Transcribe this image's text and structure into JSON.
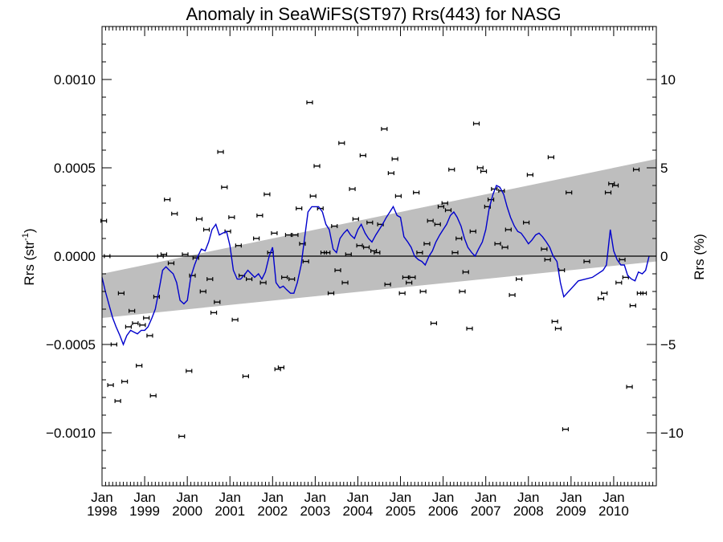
{
  "chart_data": {
    "type": "scatter",
    "title": "Anomaly in SeaWiFS(ST97) Rrs(443) for NASG",
    "ylabel_left": "Rrs (str",
    "ylabel_left_sup": "-1",
    "ylabel_left_close": ")",
    "ylabel_right": "Rrs (%)",
    "x_unit": "year",
    "xlim": [
      1998.0,
      2011.0
    ],
    "ylim": [
      -0.0013,
      0.0013
    ],
    "ylim_right": [
      -13,
      13
    ],
    "grid": false,
    "legend": "none",
    "colors": {
      "line": "#0000cc",
      "band": "#bebebe",
      "points": "#000000",
      "zero": "#000000"
    },
    "x_ticks": [
      {
        "x": 1998,
        "month": "Jan",
        "year": "1998"
      },
      {
        "x": 1999,
        "month": "Jan",
        "year": "1999"
      },
      {
        "x": 2000,
        "month": "Jan",
        "year": "2000"
      },
      {
        "x": 2001,
        "month": "Jan",
        "year": "2001"
      },
      {
        "x": 2002,
        "month": "Jan",
        "year": "2002"
      },
      {
        "x": 2003,
        "month": "Jan",
        "year": "2003"
      },
      {
        "x": 2004,
        "month": "Jan",
        "year": "2004"
      },
      {
        "x": 2005,
        "month": "Jan",
        "year": "2005"
      },
      {
        "x": 2006,
        "month": "Jan",
        "year": "2006"
      },
      {
        "x": 2007,
        "month": "Jan",
        "year": "2007"
      },
      {
        "x": 2008,
        "month": "Jan",
        "year": "2008"
      },
      {
        "x": 2009,
        "month": "Jan",
        "year": "2009"
      },
      {
        "x": 2010,
        "month": "Jan",
        "year": "2010"
      }
    ],
    "y_ticks_left": [
      {
        "v": 0.001,
        "label": "0.0010"
      },
      {
        "v": 0.0005,
        "label": "0.0005"
      },
      {
        "v": 0.0,
        "label": "0.0000"
      },
      {
        "v": -0.0005,
        "label": "−0.0005"
      },
      {
        "v": -0.001,
        "label": "−0.0010"
      }
    ],
    "y_ticks_right": [
      {
        "v": 10,
        "label": "10"
      },
      {
        "v": 5,
        "label": "5"
      },
      {
        "v": 0,
        "label": "0"
      },
      {
        "v": -5,
        "label": "−5"
      },
      {
        "v": -10,
        "label": "−10"
      }
    ],
    "band": {
      "x": [
        1998.0,
        2011.0
      ],
      "upper": [
        -0.0001,
        0.00055
      ],
      "lower": [
        -0.00035,
        -3e-05
      ]
    },
    "zero_line": 0.0,
    "points": [
      {
        "x": 1998.04,
        "y": 0.0002
      },
      {
        "x": 1998.12,
        "y": 0.0
      },
      {
        "x": 1998.2,
        "y": -0.00073
      },
      {
        "x": 1998.28,
        "y": -0.0005
      },
      {
        "x": 1998.37,
        "y": -0.00082
      },
      {
        "x": 1998.45,
        "y": -0.00021
      },
      {
        "x": 1998.53,
        "y": -0.00071
      },
      {
        "x": 1998.62,
        "y": -0.0004
      },
      {
        "x": 1998.7,
        "y": -0.00031
      },
      {
        "x": 1998.78,
        "y": -0.00038
      },
      {
        "x": 1998.87,
        "y": -0.00062
      },
      {
        "x": 1998.95,
        "y": -0.00039
      },
      {
        "x": 1999.04,
        "y": -0.00035
      },
      {
        "x": 1999.12,
        "y": -0.00045
      },
      {
        "x": 1999.2,
        "y": -0.00079
      },
      {
        "x": 1999.28,
        "y": -0.00023
      },
      {
        "x": 1999.37,
        "y": 0.0
      },
      {
        "x": 1999.45,
        "y": 1e-05
      },
      {
        "x": 1999.53,
        "y": 0.00032
      },
      {
        "x": 1999.62,
        "y": -4e-05
      },
      {
        "x": 1999.7,
        "y": 0.00024
      },
      {
        "x": 1999.87,
        "y": -0.00102
      },
      {
        "x": 1999.95,
        "y": 1e-05
      },
      {
        "x": 2000.04,
        "y": -0.00065
      },
      {
        "x": 2000.12,
        "y": -0.00011
      },
      {
        "x": 2000.2,
        "y": -1e-05
      },
      {
        "x": 2000.28,
        "y": 0.00021
      },
      {
        "x": 2000.37,
        "y": -0.0002
      },
      {
        "x": 2000.45,
        "y": 0.00015
      },
      {
        "x": 2000.53,
        "y": -0.00013
      },
      {
        "x": 2000.62,
        "y": -0.00032
      },
      {
        "x": 2000.7,
        "y": -0.00026
      },
      {
        "x": 2000.78,
        "y": 0.00059
      },
      {
        "x": 2000.87,
        "y": 0.00039
      },
      {
        "x": 2000.95,
        "y": 0.00014
      },
      {
        "x": 2001.04,
        "y": 0.00022
      },
      {
        "x": 2001.12,
        "y": -0.00036
      },
      {
        "x": 2001.2,
        "y": 6e-05
      },
      {
        "x": 2001.28,
        "y": -0.00011
      },
      {
        "x": 2001.37,
        "y": -0.00068
      },
      {
        "x": 2001.45,
        "y": -0.00013
      },
      {
        "x": 2001.62,
        "y": 0.0001
      },
      {
        "x": 2001.7,
        "y": 0.00023
      },
      {
        "x": 2001.78,
        "y": -0.00015
      },
      {
        "x": 2001.87,
        "y": 0.00035
      },
      {
        "x": 2001.95,
        "y": 2e-05
      },
      {
        "x": 2002.04,
        "y": 0.00013
      },
      {
        "x": 2002.12,
        "y": -0.00064
      },
      {
        "x": 2002.2,
        "y": -0.00063
      },
      {
        "x": 2002.28,
        "y": -0.00012
      },
      {
        "x": 2002.37,
        "y": 0.00012
      },
      {
        "x": 2002.45,
        "y": -0.00013
      },
      {
        "x": 2002.53,
        "y": 0.00012
      },
      {
        "x": 2002.62,
        "y": 0.00027
      },
      {
        "x": 2002.7,
        "y": 7e-05
      },
      {
        "x": 2002.78,
        "y": -3e-05
      },
      {
        "x": 2002.87,
        "y": 0.00087
      },
      {
        "x": 2002.95,
        "y": 0.00034
      },
      {
        "x": 2003.04,
        "y": 0.00051
      },
      {
        "x": 2003.12,
        "y": 0.00027
      },
      {
        "x": 2003.2,
        "y": 2e-05
      },
      {
        "x": 2003.28,
        "y": 2e-05
      },
      {
        "x": 2003.37,
        "y": -0.00021
      },
      {
        "x": 2003.45,
        "y": 0.00017
      },
      {
        "x": 2003.53,
        "y": -8e-05
      },
      {
        "x": 2003.62,
        "y": 0.00064
      },
      {
        "x": 2003.7,
        "y": -0.00015
      },
      {
        "x": 2003.78,
        "y": 1e-05
      },
      {
        "x": 2003.87,
        "y": 0.00038
      },
      {
        "x": 2003.95,
        "y": 0.00021
      },
      {
        "x": 2004.04,
        "y": 6e-05
      },
      {
        "x": 2004.12,
        "y": 0.00057
      },
      {
        "x": 2004.2,
        "y": 5e-05
      },
      {
        "x": 2004.28,
        "y": 0.00019
      },
      {
        "x": 2004.37,
        "y": 3e-05
      },
      {
        "x": 2004.45,
        "y": 2e-05
      },
      {
        "x": 2004.53,
        "y": 0.00018
      },
      {
        "x": 2004.62,
        "y": 0.00072
      },
      {
        "x": 2004.7,
        "y": -0.00016
      },
      {
        "x": 2004.78,
        "y": 0.00047
      },
      {
        "x": 2004.87,
        "y": 0.00055
      },
      {
        "x": 2004.95,
        "y": 0.00034
      },
      {
        "x": 2005.04,
        "y": -0.00021
      },
      {
        "x": 2005.12,
        "y": -0.00012
      },
      {
        "x": 2005.2,
        "y": -0.00015
      },
      {
        "x": 2005.28,
        "y": -0.00012
      },
      {
        "x": 2005.37,
        "y": 0.00036
      },
      {
        "x": 2005.45,
        "y": 2e-05
      },
      {
        "x": 2005.53,
        "y": -0.0002
      },
      {
        "x": 2005.62,
        "y": 7e-05
      },
      {
        "x": 2005.7,
        "y": 0.0002
      },
      {
        "x": 2005.78,
        "y": -0.00038
      },
      {
        "x": 2005.87,
        "y": 0.00018
      },
      {
        "x": 2005.95,
        "y": 0.00028
      },
      {
        "x": 2006.04,
        "y": 0.0003
      },
      {
        "x": 2006.12,
        "y": 0.00026
      },
      {
        "x": 2006.2,
        "y": 0.00049
      },
      {
        "x": 2006.28,
        "y": 2e-05
      },
      {
        "x": 2006.37,
        "y": 0.0001
      },
      {
        "x": 2006.45,
        "y": -0.0002
      },
      {
        "x": 2006.53,
        "y": -9e-05
      },
      {
        "x": 2006.62,
        "y": -0.00041
      },
      {
        "x": 2006.7,
        "y": 0.00014
      },
      {
        "x": 2006.78,
        "y": 0.00075
      },
      {
        "x": 2006.87,
        "y": 0.0005
      },
      {
        "x": 2006.95,
        "y": 0.00048
      },
      {
        "x": 2007.04,
        "y": 0.00028
      },
      {
        "x": 2007.12,
        "y": 0.00032
      },
      {
        "x": 2007.2,
        "y": 0.00038
      },
      {
        "x": 2007.28,
        "y": 7e-05
      },
      {
        "x": 2007.37,
        "y": 0.00037
      },
      {
        "x": 2007.45,
        "y": 5e-05
      },
      {
        "x": 2007.53,
        "y": 0.00015
      },
      {
        "x": 2007.62,
        "y": -0.00022
      },
      {
        "x": 2007.78,
        "y": -0.00013
      },
      {
        "x": 2007.95,
        "y": 0.00019
      },
      {
        "x": 2008.04,
        "y": 0.00046
      },
      {
        "x": 2008.37,
        "y": 4e-05
      },
      {
        "x": 2008.45,
        "y": -2e-05
      },
      {
        "x": 2008.53,
        "y": 0.00056
      },
      {
        "x": 2008.62,
        "y": -0.00037
      },
      {
        "x": 2008.7,
        "y": -0.00041
      },
      {
        "x": 2008.78,
        "y": -8e-05
      },
      {
        "x": 2008.87,
        "y": -0.00098
      },
      {
        "x": 2008.95,
        "y": 0.00036
      },
      {
        "x": 2009.37,
        "y": -3e-05
      },
      {
        "x": 2009.7,
        "y": -0.00024
      },
      {
        "x": 2009.78,
        "y": -0.00021
      },
      {
        "x": 2009.87,
        "y": 0.00036
      },
      {
        "x": 2009.95,
        "y": 0.00041
      },
      {
        "x": 2010.04,
        "y": 0.0004
      },
      {
        "x": 2010.12,
        "y": -0.00015
      },
      {
        "x": 2010.2,
        "y": -2e-05
      },
      {
        "x": 2010.28,
        "y": -0.00012
      },
      {
        "x": 2010.37,
        "y": -0.00074
      },
      {
        "x": 2010.45,
        "y": -0.00028
      },
      {
        "x": 2010.53,
        "y": 0.00049
      },
      {
        "x": 2010.62,
        "y": -0.00021
      },
      {
        "x": 2010.7,
        "y": -0.00021
      }
    ],
    "running_mean": {
      "x": [
        1998.0,
        1998.08,
        1998.17,
        1998.25,
        1998.33,
        1998.42,
        1998.5,
        1998.58,
        1998.67,
        1998.75,
        1998.83,
        1998.92,
        1999.0,
        1999.08,
        1999.17,
        1999.25,
        1999.33,
        1999.42,
        1999.5,
        1999.58,
        1999.67,
        1999.75,
        1999.83,
        1999.92,
        2000.0,
        2000.08,
        2000.17,
        2000.25,
        2000.33,
        2000.42,
        2000.5,
        2000.58,
        2000.67,
        2000.75,
        2000.83,
        2000.92,
        2001.0,
        2001.08,
        2001.17,
        2001.25,
        2001.33,
        2001.42,
        2001.5,
        2001.58,
        2001.67,
        2001.75,
        2001.83,
        2001.92,
        2002.0,
        2002.08,
        2002.17,
        2002.25,
        2002.33,
        2002.42,
        2002.5,
        2002.58,
        2002.67,
        2002.75,
        2002.83,
        2002.92,
        2003.0,
        2003.08,
        2003.17,
        2003.25,
        2003.33,
        2003.42,
        2003.5,
        2003.58,
        2003.67,
        2003.75,
        2003.83,
        2003.92,
        2004.0,
        2004.08,
        2004.17,
        2004.25,
        2004.33,
        2004.42,
        2004.5,
        2004.58,
        2004.67,
        2004.75,
        2004.83,
        2004.92,
        2005.0,
        2005.08,
        2005.17,
        2005.25,
        2005.33,
        2005.42,
        2005.5,
        2005.58,
        2005.67,
        2005.75,
        2005.83,
        2005.92,
        2006.0,
        2006.08,
        2006.17,
        2006.25,
        2006.33,
        2006.42,
        2006.5,
        2006.58,
        2006.67,
        2006.75,
        2006.83,
        2006.92,
        2007.0,
        2007.08,
        2007.17,
        2007.25,
        2007.33,
        2007.42,
        2007.5,
        2007.58,
        2007.67,
        2007.75,
        2007.83,
        2007.92,
        2008.0,
        2008.08,
        2008.17,
        2008.25,
        2008.33,
        2008.42,
        2008.5,
        2008.58,
        2008.67,
        2008.75,
        2008.83,
        2009.17,
        2009.5,
        2009.75,
        2009.83,
        2009.92,
        2010.0,
        2010.08,
        2010.17,
        2010.25,
        2010.33,
        2010.42,
        2010.5,
        2010.58,
        2010.67,
        2010.75,
        2010.83
      ],
      "y": [
        -0.00012,
        -0.0002,
        -0.00028,
        -0.00035,
        -0.0004,
        -0.00045,
        -0.0005,
        -0.00045,
        -0.00042,
        -0.00043,
        -0.00044,
        -0.00042,
        -0.00042,
        -0.0004,
        -0.00035,
        -0.0003,
        -0.0002,
        -8e-05,
        -6e-05,
        -8e-05,
        -0.0001,
        -0.00015,
        -0.00025,
        -0.00027,
        -0.00025,
        -0.00012,
        -5e-05,
        0.0,
        4e-05,
        3e-05,
        8e-05,
        0.00015,
        0.00018,
        0.00012,
        0.00013,
        0.00014,
        6e-05,
        -8e-05,
        -0.00013,
        -0.00013,
        -0.00011,
        -8e-05,
        -0.0001,
        -0.00012,
        -0.0001,
        -0.00013,
        -9e-05,
        0.0,
        5e-05,
        -0.00015,
        -0.00018,
        -0.00017,
        -0.00019,
        -0.00021,
        -0.00021,
        -0.00015,
        -5e-05,
        0.0001,
        0.00025,
        0.00028,
        0.00028,
        0.00028,
        0.00025,
        0.00018,
        0.00015,
        4e-05,
        2e-05,
        0.0001,
        0.00013,
        0.00015,
        0.00012,
        0.0001,
        0.00015,
        0.00018,
        0.00013,
        0.0001,
        8e-05,
        0.00012,
        0.00015,
        0.00018,
        0.00022,
        0.00025,
        0.00028,
        0.00023,
        0.00022,
        0.00011,
        8e-05,
        5e-05,
        0.0,
        -2e-05,
        -3e-05,
        -5e-05,
        0.0,
        3e-05,
        8e-05,
        0.00012,
        0.00015,
        0.00018,
        0.00023,
        0.00025,
        0.00022,
        0.00017,
        0.0001,
        5e-05,
        2e-05,
        0.0,
        4e-05,
        8e-05,
        0.00015,
        0.00027,
        0.00035,
        0.0004,
        0.00039,
        0.00035,
        0.00028,
        0.00022,
        0.00017,
        0.00014,
        0.00013,
        0.0001,
        7e-05,
        9e-05,
        0.00012,
        0.00013,
        0.00011,
        8e-05,
        5e-05,
        0.0,
        -3e-05,
        -0.00015,
        -0.00023,
        -0.00014,
        -0.00012,
        -8e-05,
        -5e-05,
        0.00015,
        3e-05,
        -2e-05,
        -5e-05,
        -5e-05,
        -0.00011,
        -0.00013,
        -0.00014,
        -9e-05,
        -0.0001,
        -8e-05,
        0.0
      ]
    }
  }
}
